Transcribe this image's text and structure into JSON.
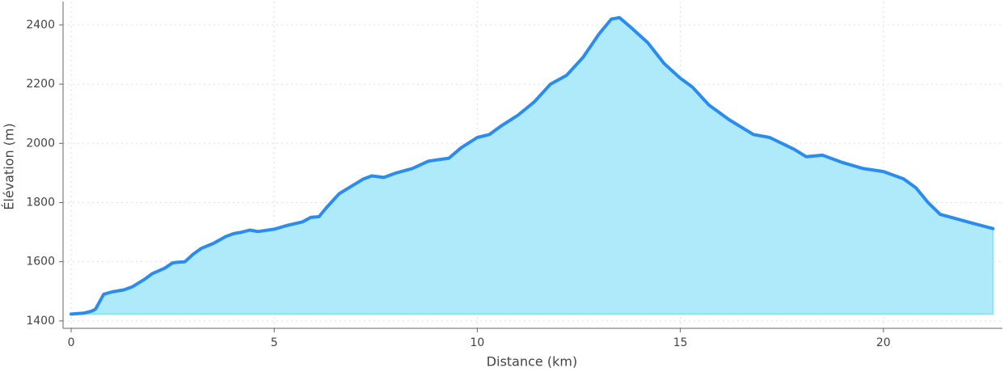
{
  "chart_data": {
    "type": "area",
    "x_label": "Distance (km)",
    "y_label": "Élévation (m)",
    "x": [
      0,
      0.3,
      0.5,
      0.6,
      0.7,
      0.8,
      1.0,
      1.3,
      1.5,
      1.8,
      2.0,
      2.3,
      2.5,
      2.6,
      2.8,
      3.0,
      3.2,
      3.5,
      3.8,
      4.0,
      4.2,
      4.4,
      4.6,
      5.0,
      5.3,
      5.7,
      5.9,
      6.1,
      6.3,
      6.6,
      6.9,
      7.2,
      7.4,
      7.7,
      8.0,
      8.4,
      8.8,
      9.3,
      9.6,
      10.0,
      10.3,
      10.6,
      11.0,
      11.4,
      11.8,
      12.2,
      12.6,
      13.0,
      13.3,
      13.5,
      13.8,
      14.2,
      14.6,
      15.0,
      15.3,
      15.7,
      16.2,
      16.8,
      17.2,
      17.8,
      18.1,
      18.5,
      19.0,
      19.5,
      20.0,
      20.5,
      20.8,
      21.1,
      21.4,
      21.8,
      22.2,
      22.7
    ],
    "series": [
      {
        "name": "Élévation",
        "color": "#2b8cf0",
        "fill": "#aeeaf9",
        "values": [
          1423,
          1426,
          1433,
          1440,
          1465,
          1490,
          1498,
          1505,
          1515,
          1540,
          1560,
          1578,
          1596,
          1598,
          1600,
          1625,
          1645,
          1662,
          1685,
          1695,
          1700,
          1707,
          1702,
          1710,
          1722,
          1735,
          1750,
          1752,
          1785,
          1830,
          1855,
          1880,
          1890,
          1885,
          1900,
          1915,
          1940,
          1950,
          1985,
          2020,
          2030,
          2060,
          2095,
          2140,
          2200,
          2230,
          2290,
          2370,
          2420,
          2425,
          2390,
          2340,
          2270,
          2220,
          2190,
          2130,
          2080,
          2030,
          2020,
          1980,
          1955,
          1960,
          1935,
          1915,
          1905,
          1880,
          1850,
          1800,
          1760,
          1745,
          1730,
          1712
        ]
      }
    ],
    "xlim": [
      -0.2,
      22.93
    ],
    "ylim": [
      1375,
      2479
    ],
    "xticks": [
      0,
      5,
      10,
      15,
      20
    ],
    "yticks": [
      1400,
      1600,
      1800,
      2000,
      2200,
      2400
    ],
    "grid": true
  }
}
